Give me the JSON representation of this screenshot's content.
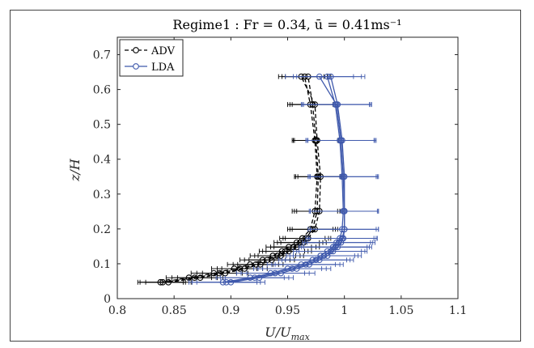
{
  "chart_data": {
    "type": "scatter",
    "title": "Regime1 : Fr = 0.34, ū = 0.41ms⁻¹",
    "xlabel": "U/U_max",
    "ylabel": "z/H",
    "xlim": [
      0.8,
      1.1
    ],
    "ylim": [
      0,
      0.75
    ],
    "xticks": [
      0.8,
      0.85,
      0.9,
      0.95,
      1,
      1.05,
      1.1
    ],
    "yticks": [
      0,
      0.1,
      0.2,
      0.3,
      0.4,
      0.5,
      0.6,
      0.7
    ],
    "xtick_labels": [
      "0.8",
      "0.85",
      "0.9",
      "0.95",
      "1",
      "1.05",
      "1.1"
    ],
    "ytick_labels": [
      "0",
      "0.1",
      "0.2",
      "0.3",
      "0.4",
      "0.5",
      "0.6",
      "0.7"
    ],
    "grid": false,
    "legend_position": "top-left",
    "series": [
      {
        "name": "ADV",
        "color": "#000000",
        "marker": "open-circle",
        "line": "dashed",
        "xerr": 0.02,
        "profiles": [
          [
            [
              0.838,
              0.047
            ],
            [
              0.863,
              0.06
            ],
            [
              0.885,
              0.073
            ],
            [
              0.903,
              0.086
            ],
            [
              0.917,
              0.098
            ],
            [
              0.928,
              0.111
            ],
            [
              0.937,
              0.123
            ],
            [
              0.945,
              0.136
            ],
            [
              0.951,
              0.148
            ],
            [
              0.958,
              0.161
            ],
            [
              0.963,
              0.173
            ],
            [
              0.97,
              0.199
            ],
            [
              0.974,
              0.251
            ],
            [
              0.976,
              0.35
            ],
            [
              0.974,
              0.454
            ],
            [
              0.97,
              0.557
            ],
            [
              0.965,
              0.637
            ]
          ],
          [
            [
              0.84,
              0.047
            ],
            [
              0.868,
              0.06
            ],
            [
              0.89,
              0.073
            ],
            [
              0.908,
              0.086
            ],
            [
              0.922,
              0.098
            ],
            [
              0.932,
              0.111
            ],
            [
              0.941,
              0.123
            ],
            [
              0.948,
              0.136
            ],
            [
              0.955,
              0.148
            ],
            [
              0.961,
              0.161
            ],
            [
              0.966,
              0.173
            ],
            [
              0.972,
              0.199
            ],
            [
              0.976,
              0.251
            ],
            [
              0.977,
              0.35
            ],
            [
              0.975,
              0.454
            ],
            [
              0.972,
              0.557
            ],
            [
              0.968,
              0.637
            ]
          ],
          [
            [
              0.845,
              0.047
            ],
            [
              0.873,
              0.06
            ],
            [
              0.895,
              0.073
            ],
            [
              0.912,
              0.086
            ],
            [
              0.926,
              0.098
            ],
            [
              0.936,
              0.111
            ],
            [
              0.944,
              0.123
            ],
            [
              0.951,
              0.136
            ],
            [
              0.958,
              0.148
            ],
            [
              0.964,
              0.161
            ],
            [
              0.968,
              0.173
            ],
            [
              0.974,
              0.199
            ],
            [
              0.978,
              0.251
            ],
            [
              0.979,
              0.35
            ],
            [
              0.976,
              0.454
            ],
            [
              0.974,
              0.557
            ],
            [
              0.962,
              0.637
            ]
          ]
        ]
      },
      {
        "name": "LDA",
        "color": "#3f59ac",
        "marker": "open-circle",
        "line": "solid",
        "xerr": 0.03,
        "profiles": [
          [
            [
              0.893,
              0.047
            ],
            [
              0.917,
              0.06
            ],
            [
              0.935,
              0.073
            ],
            [
              0.95,
              0.086
            ],
            [
              0.962,
              0.098
            ],
            [
              0.972,
              0.111
            ],
            [
              0.979,
              0.123
            ],
            [
              0.985,
              0.136
            ],
            [
              0.99,
              0.148
            ],
            [
              0.993,
              0.161
            ],
            [
              0.996,
              0.173
            ],
            [
              0.998,
              0.199
            ],
            [
              0.999,
              0.251
            ],
            [
              0.998,
              0.35
            ],
            [
              0.996,
              0.454
            ],
            [
              0.992,
              0.557
            ],
            [
              0.985,
              0.637
            ]
          ],
          [
            [
              0.896,
              0.047
            ],
            [
              0.921,
              0.06
            ],
            [
              0.939,
              0.073
            ],
            [
              0.954,
              0.086
            ],
            [
              0.966,
              0.098
            ],
            [
              0.975,
              0.111
            ],
            [
              0.982,
              0.123
            ],
            [
              0.988,
              0.136
            ],
            [
              0.992,
              0.148
            ],
            [
              0.995,
              0.161
            ],
            [
              0.998,
              0.173
            ],
            [
              1.0,
              0.199
            ],
            [
              1.0,
              0.251
            ],
            [
              1.0,
              0.35
            ],
            [
              0.998,
              0.454
            ],
            [
              0.994,
              0.557
            ],
            [
              0.988,
              0.637
            ]
          ],
          [
            [
              0.9,
              0.047
            ],
            [
              0.925,
              0.06
            ],
            [
              0.944,
              0.073
            ],
            [
              0.958,
              0.086
            ],
            [
              0.969,
              0.098
            ],
            [
              0.978,
              0.111
            ],
            [
              0.985,
              0.123
            ],
            [
              0.99,
              0.136
            ],
            [
              0.994,
              0.148
            ],
            [
              0.997,
              0.161
            ],
            [
              0.999,
              0.173
            ],
            [
              1.0,
              0.199
            ],
            [
              1.0,
              0.251
            ],
            [
              0.999,
              0.35
            ],
            [
              0.997,
              0.454
            ],
            [
              0.993,
              0.557
            ],
            [
              0.978,
              0.637
            ]
          ]
        ]
      }
    ]
  }
}
